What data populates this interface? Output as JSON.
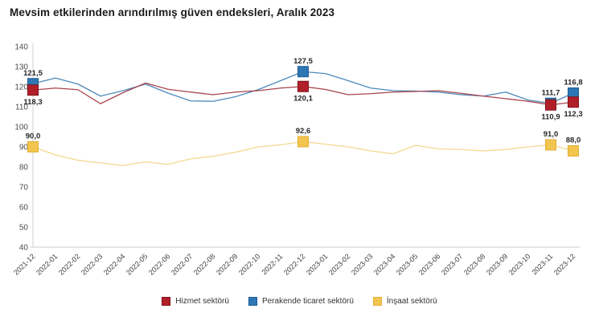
{
  "title": "Mevsim etkilerinden arındırılmış güven endeksleri, Aralık 2023",
  "chart_data": {
    "type": "line",
    "title": "Mevsim etkilerinden arındırılmış güven endeksleri, Aralık 2023",
    "x": [
      "2021-12",
      "2022-01",
      "2022-02",
      "2022-03",
      "2022-04",
      "2022-05",
      "2022-06",
      "2022-07",
      "2022-08",
      "2022-09",
      "2022-10",
      "2022-11",
      "2022-12",
      "2023-01",
      "2023-02",
      "2023-03",
      "2023-04",
      "2023-05",
      "2023-06",
      "2023-07",
      "2023-08",
      "2023-09",
      "2023-10",
      "2023-11",
      "2023-12"
    ],
    "ylim": [
      40,
      140
    ],
    "yticks": [
      40,
      50,
      60,
      70,
      80,
      90,
      100,
      110,
      120,
      130,
      140
    ],
    "grid": false,
    "legend_position": "bottom",
    "axis_color": "#cfcfcf",
    "marker_size": 13,
    "draw_order": [
      1,
      2,
      0
    ],
    "series": [
      {
        "name": "Hizmet sektörü",
        "marker_color": "#B11F29",
        "marker_border": "#7E1219",
        "line_color": "#A8444C",
        "values": [
          118.3,
          119.3,
          118.5,
          111.5,
          117.0,
          121.8,
          118.7,
          117.3,
          116.0,
          117.3,
          118.0,
          119.3,
          120.1,
          118.6,
          116.0,
          116.5,
          117.3,
          117.6,
          118.0,
          116.7,
          115.3,
          114.0,
          112.7,
          110.9,
          112.3
        ],
        "labeled_points": [
          {
            "index": 0,
            "label": "118,3",
            "position": "below"
          },
          {
            "index": 12,
            "label": "120,1",
            "position": "below"
          },
          {
            "index": 23,
            "label": "110,9",
            "position": "below"
          },
          {
            "index": 24,
            "label": "112,3",
            "position": "below"
          }
        ]
      },
      {
        "name": "Perakende ticaret sektörü",
        "marker_color": "#2E77B5",
        "marker_border": "#1F5C94",
        "line_color": "#4D89BA",
        "values": [
          121.5,
          124.3,
          121.3,
          115.3,
          118.0,
          121.3,
          116.8,
          112.9,
          112.7,
          115.0,
          118.5,
          123.0,
          127.5,
          126.5,
          123.0,
          119.3,
          118.0,
          117.8,
          117.3,
          116.0,
          115.3,
          117.3,
          113.3,
          111.7,
          116.8
        ],
        "labeled_points": [
          {
            "index": 0,
            "label": "121,5",
            "position": "above"
          },
          {
            "index": 12,
            "label": "127,5",
            "position": "above"
          },
          {
            "index": 23,
            "label": "111,7",
            "position": "above"
          },
          {
            "index": 24,
            "label": "116,8",
            "position": "above"
          }
        ]
      },
      {
        "name": "İnşaat sektörü",
        "marker_color": "#F2C54F",
        "marker_border": "#E3AE35",
        "line_color": "#F3D98F",
        "values": [
          90.0,
          86.0,
          83.3,
          82.0,
          80.7,
          82.5,
          81.3,
          84.0,
          85.3,
          87.3,
          90.0,
          91.0,
          92.6,
          91.3,
          90.0,
          88.0,
          86.5,
          90.8,
          89.0,
          88.7,
          88.0,
          88.7,
          90.0,
          91.0,
          88.0
        ],
        "labeled_points": [
          {
            "index": 0,
            "label": "90,0",
            "position": "above"
          },
          {
            "index": 12,
            "label": "92,6",
            "position": "above"
          },
          {
            "index": 23,
            "label": "91,0",
            "position": "above"
          },
          {
            "index": 24,
            "label": "88,0",
            "position": "above"
          }
        ]
      }
    ]
  }
}
